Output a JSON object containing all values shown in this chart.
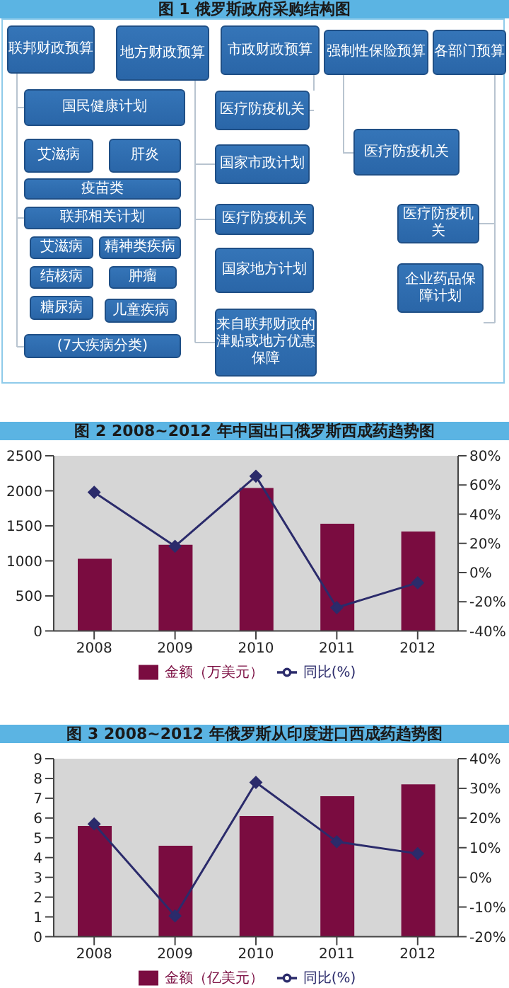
{
  "chart_data": [
    {
      "type": "other",
      "title": "图 1 俄罗斯政府采购结构图",
      "annotations": [
        "联邦财政预算",
        "地方财政预算",
        "市政财政预算",
        "强制性保险预算",
        "各部门预算",
        "国民健康计划",
        "艾滋病",
        "肝炎",
        "疫苗类",
        "联邦相关计划",
        "艾滋病",
        "精神类疾病",
        "结核病",
        "肿瘤",
        "糖尿病",
        "儿童疾病",
        "(7大疾病分类)",
        "医疗防疫机关",
        "国家市政计划",
        "医疗防疫机关",
        "国家地方计划",
        "来自联邦财政的津贴或地方优惠保障",
        "医疗防疫机关",
        "医疗防疫机关",
        "企业药品保障计划"
      ]
    },
    {
      "type": "bar",
      "title": "图 2 2008~2012 年中国出口俄罗斯西成药趋势图",
      "categories": [
        "2008",
        "2009",
        "2010",
        "2011",
        "2012"
      ],
      "ylim": [
        0,
        2500
      ],
      "yticks": [
        0,
        500,
        1000,
        1500,
        2000,
        2500
      ],
      "y2lim": [
        -40,
        80
      ],
      "y2ticks": [
        {
          "value": -40,
          "label": "-40%"
        },
        {
          "value": -20,
          "label": "-20%"
        },
        {
          "value": 0,
          "label": "0%"
        },
        {
          "value": 20,
          "label": "20%"
        },
        {
          "value": 40,
          "label": "40%"
        },
        {
          "value": 60,
          "label": "60%"
        },
        {
          "value": 80,
          "label": "80%"
        }
      ],
      "legend": "bottom",
      "marker": "diamond",
      "grid": false,
      "series": [
        {
          "name": "金额（万美元）",
          "type": "bar",
          "color": "#7a0c40",
          "values": [
            1030,
            1230,
            2040,
            1530,
            1420
          ]
        },
        {
          "name": "同比(%)",
          "type": "line",
          "axis": "y2",
          "color": "#2b2b6b",
          "values": [
            55,
            18,
            66,
            -24,
            -7
          ]
        }
      ]
    },
    {
      "type": "bar",
      "title": "图 3 2008~2012 年俄罗斯从印度进口西成药趋势图",
      "categories": [
        "2008",
        "2009",
        "2010",
        "2011",
        "2012"
      ],
      "ylim": [
        0,
        9
      ],
      "yticks": [
        0,
        1,
        2,
        3,
        4,
        5,
        6,
        7,
        8,
        9
      ],
      "y2lim": [
        -20,
        40
      ],
      "y2ticks": [
        {
          "value": -20,
          "label": "-20%"
        },
        {
          "value": -10,
          "label": "-10%"
        },
        {
          "value": 0,
          "label": "0%"
        },
        {
          "value": 10,
          "label": "10%"
        },
        {
          "value": 20,
          "label": "20%"
        },
        {
          "value": 30,
          "label": "30%"
        },
        {
          "value": 40,
          "label": "40%"
        }
      ],
      "legend": "bottom",
      "marker": "diamond",
      "grid": false,
      "series": [
        {
          "name": "金额（亿美元）",
          "type": "bar",
          "color": "#7a0c40",
          "values": [
            5.6,
            4.6,
            6.1,
            7.1,
            7.7
          ]
        },
        {
          "name": "同比(%)",
          "type": "line",
          "axis": "y2",
          "color": "#2b2b6b",
          "values": [
            18,
            -13,
            32,
            12,
            8
          ]
        }
      ]
    }
  ]
}
